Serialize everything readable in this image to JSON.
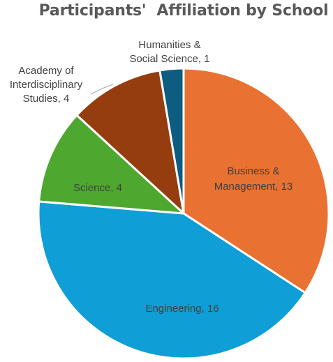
{
  "chart_data": {
    "type": "pie",
    "title": "Participants'  Affiliation by School",
    "slices": [
      {
        "name": "Business & Management",
        "value": 13,
        "color": "#E97132",
        "label_lines": [
          "Business &",
          "Management, 13"
        ]
      },
      {
        "name": "Engineering",
        "value": 16,
        "color": "#0F9ED5",
        "label_lines": [
          "Engineering, 16"
        ]
      },
      {
        "name": "Science",
        "value": 4,
        "color": "#4EA72E",
        "label_lines": [
          "Science, 4"
        ]
      },
      {
        "name": "Academy of Interdisciplinary Studies",
        "value": 4,
        "color": "#953D0F",
        "label_lines": [
          "Academy of",
          "Interdisciplinary",
          "Studies, 4"
        ]
      },
      {
        "name": "Humanities & Social Science",
        "value": 1,
        "color": "#0E5C80",
        "label_lines": [
          "Humanities &",
          "Social Science, 1"
        ]
      }
    ],
    "legend": "none",
    "data_labels": "category name and value"
  }
}
